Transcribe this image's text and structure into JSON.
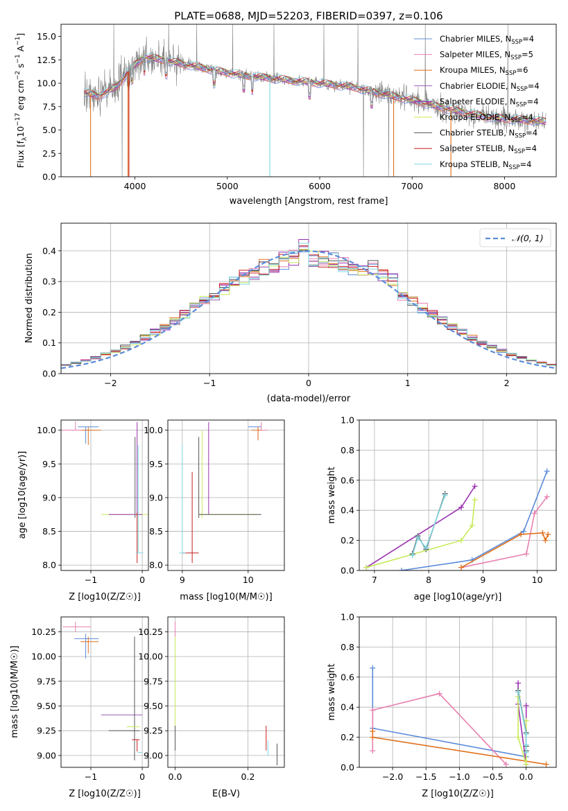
{
  "colors": {
    "chabrier_miles": "#5b8bd9",
    "salpeter_miles": "#e87fb0",
    "kroupa_miles": "#e0701c",
    "chabrier_elodie": "#9b59b6",
    "salpeter_elodie": "#9b30b0",
    "kroupa_elodie": "#c8ea5a",
    "chabrier_stelib": "#555555",
    "salpeter_stelib": "#c81e1e",
    "kroupa_stelib": "#7fd8e0",
    "spectrum": "#808080",
    "gauss": "#5b8bd9"
  },
  "chart_data": [
    {
      "type": "line",
      "title": "PLATE=0688, MJD=52203, FIBERID=0397, z=0.106",
      "xlabel": "wavelength [Angstrom, rest frame]",
      "ylabel": "Flux [f_λ10^-17 erg cm^-2 s^-1 A^-1]",
      "xlim": [
        3200,
        8560
      ],
      "ylim": [
        0,
        16.3
      ],
      "xticks": [
        "4000",
        "5000",
        "6000",
        "7000",
        "8000"
      ],
      "yticks": [
        "0.0",
        "2.5",
        "5.0",
        "7.5",
        "10.0",
        "12.5",
        "15.0"
      ],
      "legend_position": "top-right",
      "legend": [
        {
          "base": "Chabrier MILES, N",
          "n": "=4"
        },
        {
          "base": "Salpeter MILES, N",
          "n": "=5"
        },
        {
          "base": "Kroupa MILES, N",
          "n": "=6"
        },
        {
          "base": "Chabrier ELODIE, N",
          "n": "=4"
        },
        {
          "base": "Salpeter ELODIE, N",
          "n": "=4"
        },
        {
          "base": "Kroupa ELODIE, N",
          "n": "=4"
        },
        {
          "base": "Chabrier STELIB, N",
          "n": "=4"
        },
        {
          "base": "Salpeter STELIB, N",
          "n": "=4"
        },
        {
          "base": "Kroupa STELIB, N",
          "n": "=4"
        }
      ],
      "legend_sub": "SSP",
      "continuum": [
        [
          3450,
          9.0
        ],
        [
          3600,
          8.6
        ],
        [
          3800,
          9.6
        ],
        [
          3950,
          11.5
        ],
        [
          4100,
          12.8
        ],
        [
          4300,
          12.5
        ],
        [
          4600,
          11.9
        ],
        [
          4900,
          11.3
        ],
        [
          5200,
          10.8
        ],
        [
          5500,
          10.5
        ],
        [
          5800,
          10.2
        ],
        [
          6100,
          9.9
        ],
        [
          6400,
          9.5
        ],
        [
          6700,
          8.8
        ],
        [
          7000,
          8.2
        ],
        [
          7400,
          7.2
        ],
        [
          7800,
          6.4
        ],
        [
          8000,
          6.2
        ],
        [
          8300,
          6.0
        ],
        [
          8450,
          5.9
        ]
      ]
    },
    {
      "type": "histogram",
      "xlabel": "(data-model)/error",
      "ylabel": "Normed distribution",
      "xlim": [
        -2.5,
        2.5
      ],
      "ylim": [
        0,
        0.49
      ],
      "xticks": [
        "−2",
        "−1",
        "0",
        "1",
        "2"
      ],
      "yticks": [
        "0.0",
        "0.1",
        "0.2",
        "0.3",
        "0.4"
      ],
      "grid": true,
      "legend_position": "top-right",
      "legend_label": "𝒩(0, 1)",
      "bin_width": 0.1
    },
    {
      "type": "scatter",
      "xlabel": "Z [log10(Z/Z☉)]",
      "ylabel": "age  [log10(age/yr)]",
      "xlim": [
        -1.58,
        0.12
      ],
      "ylim": [
        7.92,
        10.15
      ],
      "xticks": [
        "−1",
        "0"
      ],
      "yticks": [
        "8.0",
        "8.5",
        "9.0",
        "9.5",
        "10.0"
      ],
      "grid": true
    },
    {
      "type": "scatter",
      "xlabel": "mass [log10(M/M☉)]",
      "ylabel": "",
      "xlim": [
        8.78,
        10.55
      ],
      "ylim": [
        7.92,
        10.15
      ],
      "xticks": [
        "9",
        "10"
      ],
      "yticks": [
        "8.0",
        "8.5",
        "9.0",
        "9.5",
        "10.0"
      ],
      "grid": true
    },
    {
      "type": "line",
      "xlabel": "age  [log10(age/yr)]",
      "ylabel": "mass weight",
      "xlim": [
        6.72,
        10.35
      ],
      "ylim": [
        0,
        1.0
      ],
      "xticks": [
        "7",
        "8",
        "9",
        "10"
      ],
      "yticks": [
        "0.0",
        "0.2",
        "0.4",
        "0.6",
        "0.8",
        "1.0"
      ],
      "grid": true,
      "series": [
        {
          "color": "chabrier_miles",
          "x": [
            7.5,
            8.8,
            9.75,
            10.18
          ],
          "y": [
            0.0,
            0.07,
            0.26,
            0.66
          ]
        },
        {
          "color": "salpeter_miles",
          "x": [
            8.6,
            9.8,
            9.95,
            10.18
          ],
          "y": [
            0.02,
            0.11,
            0.38,
            0.49
          ]
        },
        {
          "color": "kroupa_miles",
          "x": [
            8.6,
            9.7,
            10.1,
            10.15,
            10.2
          ],
          "y": [
            0.02,
            0.24,
            0.25,
            0.2,
            0.24
          ]
        },
        {
          "color": "salpeter_elodie",
          "x": [
            6.85,
            8.6,
            8.85
          ],
          "y": [
            0.02,
            0.42,
            0.56
          ]
        },
        {
          "color": "kroupa_elodie",
          "x": [
            6.85,
            8.6,
            8.8,
            8.85
          ],
          "y": [
            0.02,
            0.2,
            0.3,
            0.47
          ]
        },
        {
          "color": "chabrier_stelib",
          "x": [
            7.7,
            7.8,
            7.95,
            8.3
          ],
          "y": [
            0.11,
            0.23,
            0.14,
            0.51
          ]
        },
        {
          "color": "kroupa_stelib",
          "x": [
            7.7,
            7.8,
            7.95,
            8.3
          ],
          "y": [
            0.1,
            0.22,
            0.15,
            0.5
          ]
        }
      ]
    },
    {
      "type": "scatter",
      "xlabel": "Z [log10(Z/Z☉)]",
      "ylabel": "mass [log10(M/M☉)]",
      "xlim": [
        -1.58,
        0.12
      ],
      "ylim": [
        8.88,
        10.4
      ],
      "xticks": [
        "−1",
        "0"
      ],
      "yticks": [
        "9.00",
        "9.25",
        "9.50",
        "9.75",
        "10.00",
        "10.25"
      ],
      "grid": true
    },
    {
      "type": "scatter",
      "xlabel": "E(B-V)",
      "ylabel": "",
      "xlim": [
        -0.02,
        0.3
      ],
      "ylim": [
        8.88,
        10.4
      ],
      "xticks": [
        "0.0",
        "0.2"
      ],
      "yticks": [
        "9.00",
        "9.25",
        "9.50",
        "9.75",
        "10.00",
        "10.25"
      ],
      "grid": true
    },
    {
      "type": "line",
      "xlabel": "Z [log10(Z/Z☉)]",
      "ylabel": "mass weight",
      "xlim": [
        -2.5,
        0.45
      ],
      "ylim": [
        0,
        1.0
      ],
      "xticks": [
        "−2.0",
        "−1.5",
        "−1.0",
        "−0.5",
        "0.0"
      ],
      "yticks": [
        "0.0",
        "0.2",
        "0.4",
        "0.6",
        "0.8",
        "1.0"
      ],
      "grid": true,
      "series": [
        {
          "color": "chabrier_miles",
          "x": [
            -2.3,
            -2.3,
            0.0,
            0.0
          ],
          "y": [
            0.66,
            0.26,
            0.07,
            0.0
          ]
        },
        {
          "color": "salpeter_miles",
          "x": [
            -2.3,
            -2.3,
            -1.3,
            -0.3
          ],
          "y": [
            0.11,
            0.38,
            0.49,
            0.02
          ]
        },
        {
          "color": "kroupa_miles",
          "x": [
            -2.3,
            -2.3,
            0.3
          ],
          "y": [
            0.24,
            0.2,
            0.02
          ]
        },
        {
          "color": "salpeter_elodie",
          "x": [
            -0.12,
            -0.12,
            0.0,
            0.0
          ],
          "y": [
            0.56,
            0.42,
            0.02,
            0.41
          ]
        },
        {
          "color": "kroupa_elodie",
          "x": [
            -0.12,
            -0.12,
            0.0,
            0.0
          ],
          "y": [
            0.47,
            0.2,
            0.02,
            0.31
          ]
        },
        {
          "color": "chabrier_stelib",
          "x": [
            -0.12,
            0.0,
            0.0,
            0.0
          ],
          "y": [
            0.51,
            0.23,
            0.14,
            0.11
          ]
        },
        {
          "color": "kroupa_stelib",
          "x": [
            -0.12,
            0.0,
            0.0,
            0.0
          ],
          "y": [
            0.5,
            0.22,
            0.15,
            0.1
          ]
        }
      ]
    }
  ]
}
